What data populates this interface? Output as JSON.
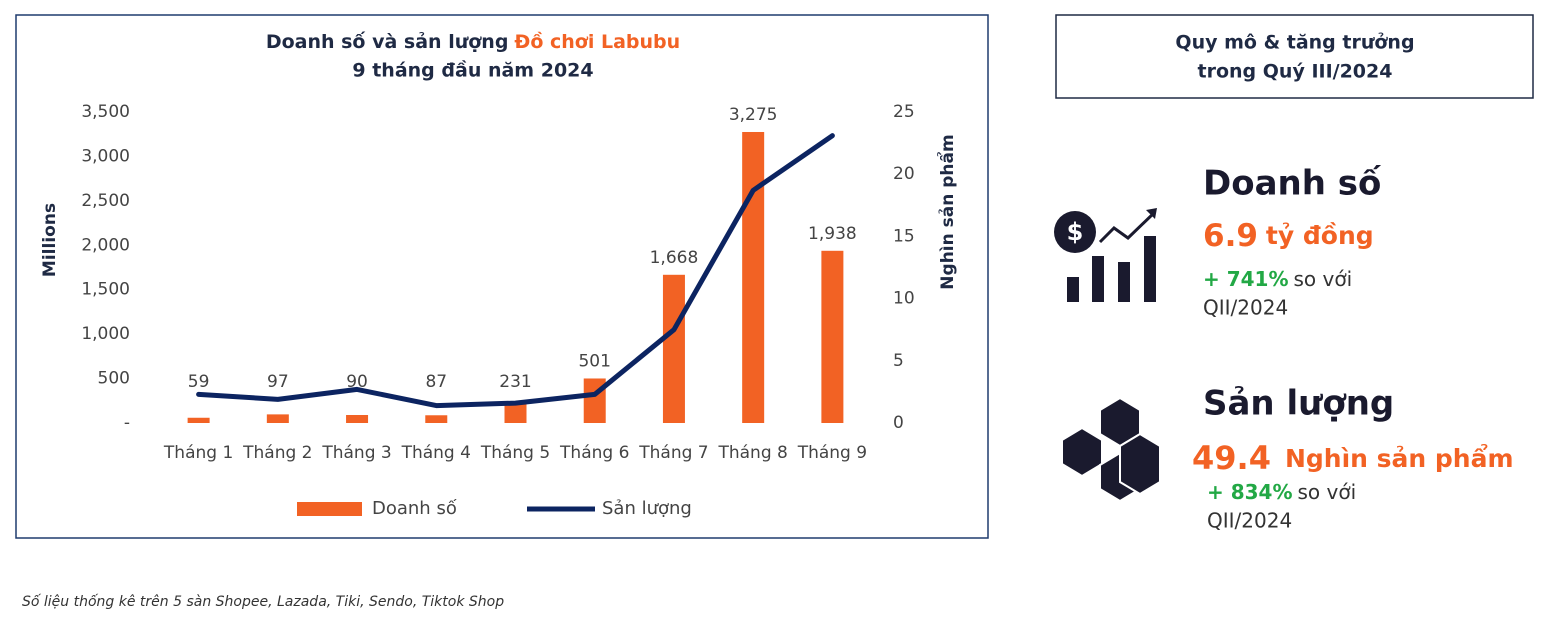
{
  "chart_data": {
    "type": "bar",
    "title": "Doanh số và sản lượng",
    "title_highlight": "Đồ chơi Labubu",
    "subtitle": "9 tháng đầu năm 2024",
    "y_label": "Millions",
    "y2_label": "Nghìn sản phẩm",
    "categories": [
      "Tháng 1",
      "Tháng 2",
      "Tháng 3",
      "Tháng 4",
      "Tháng 5",
      "Tháng 6",
      "Tháng 7",
      "Tháng 8",
      "Tháng 9"
    ],
    "series": [
      {
        "name": "Doanh số",
        "type": "bar",
        "color": "#f26224",
        "values": [
          59,
          97,
          90,
          87,
          231,
          501,
          1668,
          3275,
          1938
        ],
        "value_labels": [
          "59",
          "97",
          "90",
          "87",
          "231",
          "501",
          "1,668",
          "3,275",
          "1,938"
        ]
      },
      {
        "name": "Sản lượng",
        "type": "line",
        "axis": "y2",
        "color": "#0c2461",
        "values": [
          2.3,
          1.9,
          2.7,
          1.4,
          1.6,
          2.3,
          7.5,
          18.7,
          23.1
        ]
      }
    ],
    "ylim": [
      0,
      3500
    ],
    "yticks": [
      {
        "value": 0,
        "label": "-"
      },
      500,
      {
        "value": 1000,
        "label": "1,000"
      },
      {
        "value": 1500,
        "label": "1,500"
      },
      {
        "value": 2000,
        "label": "2,000"
      },
      {
        "value": 2500,
        "label": "2,500"
      },
      {
        "value": 3000,
        "label": "3,000"
      },
      {
        "value": 3500,
        "label": "3,500"
      }
    ],
    "y2lim": [
      0,
      25
    ],
    "y2ticks": [
      0,
      5,
      10,
      15,
      20,
      25
    ],
    "grid": false,
    "legend": "bottom"
  },
  "panel": {
    "title": [
      "Quy mô & tăng trưởng",
      "trong Quý III/2024"
    ],
    "items": [
      {
        "heading": "Doanh số",
        "value": "6.9",
        "unit": "tỷ đồng",
        "growth": "+ 741%",
        "compare": "so với",
        "period": "QII/2024"
      },
      {
        "heading": "Sản lượng",
        "value": "49.4",
        "unit": "Nghìn sản phẩm",
        "growth": "+ 834%",
        "compare": "so với",
        "period": "QII/2024"
      }
    ]
  },
  "note": "Số liệu thống kê trên 5 sàn Shopee, Lazada, Tiki, Sendo, Tiktok Shop"
}
